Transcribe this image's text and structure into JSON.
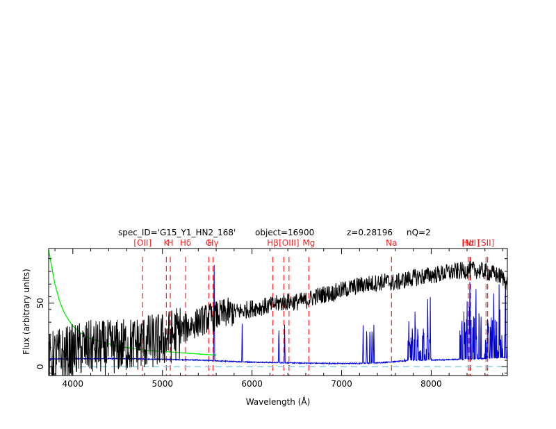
{
  "chart_data": {
    "type": "line",
    "header": {
      "spec_id": "spec_ID='G15_Y1_HN2_168'",
      "object": "object=16900",
      "redshift": "z=0.28196",
      "nq": "nQ=2"
    },
    "xlabel": "Wavelength (Å)",
    "ylabel": "Flux (arbitrary units)",
    "xlim": [
      3730,
      8850
    ],
    "ylim": [
      -7,
      93
    ],
    "x_ticks": [
      4000,
      5000,
      6000,
      7000,
      8000
    ],
    "y_ticks": [
      0,
      50
    ],
    "grid": false,
    "colors": {
      "spectrum": "#000000",
      "sky": "#0000dd",
      "response": "#00ee00",
      "zero_line": "#87ceeb",
      "lines": "#ff2020"
    },
    "line_markers": [
      {
        "label": "[OII]",
        "x": 4779
      },
      {
        "label": "K",
        "x": 5044
      },
      {
        "label": "H",
        "x": 5088
      },
      {
        "label": "Hδ",
        "x": 5259
      },
      {
        "label": "G",
        "x": 5518
      },
      {
        "label": "Hγ",
        "x": 5565
      },
      {
        "label": "Hβ",
        "x": 6232
      },
      {
        "label": "[OIII]",
        "x": 6413,
        "extra_x": [
          6355
        ]
      },
      {
        "label": "Mg",
        "x": 6634
      },
      {
        "label": "Na",
        "x": 7557
      },
      {
        "label": "Hα",
        "x": 8414,
        "extra_x": [
          8432
        ]
      },
      {
        "label": "[NII]",
        "x": 8440
      },
      {
        "label": "[SII]",
        "x": 8612,
        "extra_x": [
          8630
        ]
      }
    ],
    "series": [
      {
        "key": "spectrum",
        "x": [
          3730,
          3800,
          3900,
          4000,
          4100,
          4200,
          4300,
          4400,
          4500,
          4600,
          4700,
          4800,
          4900,
          5000,
          5100,
          5200,
          5300,
          5400,
          5500,
          5600,
          5700,
          5800,
          5900,
          6000,
          6100,
          6200,
          6300,
          6400,
          6500,
          6600,
          6700,
          6800,
          6900,
          7000,
          7100,
          7200,
          7300,
          7400,
          7500,
          7600,
          7700,
          7800,
          7900,
          8000,
          8100,
          8200,
          8300,
          8400,
          8500,
          8600,
          8700,
          8800,
          8850
        ],
        "y": [
          5,
          8,
          10,
          12,
          14,
          15,
          15,
          15,
          16,
          17,
          18,
          19,
          20,
          21,
          24,
          28,
          32,
          35,
          38,
          40,
          42,
          43,
          44,
          46,
          47,
          48,
          50,
          51,
          51,
          52,
          55,
          57,
          58,
          60,
          62,
          64,
          65,
          66,
          67,
          66,
          68,
          70,
          71,
          72,
          73,
          74,
          75,
          76,
          76,
          75,
          73,
          70,
          66
        ]
      },
      {
        "key": "sky",
        "x": [
          3730,
          4000,
          4500,
          5000,
          5400,
          5600,
          5800,
          6000,
          6200,
          6400,
          6600,
          6800,
          7000,
          7200,
          7400,
          7600,
          7800,
          8000,
          8200,
          8400,
          8600,
          8800,
          8850
        ],
        "y": [
          6,
          6.2,
          6.3,
          5.8,
          5.2,
          4.6,
          4,
          3.6,
          3.3,
          3,
          2.8,
          2.6,
          2.5,
          2.6,
          3,
          4,
          5,
          5.2,
          5.5,
          6,
          6.5,
          7,
          7
        ]
      },
      {
        "key": "response",
        "x": [
          3730,
          3760,
          3800,
          3850,
          3900,
          3950,
          4000,
          4100,
          4200,
          4300,
          4400,
          4500,
          4600,
          4700,
          4800,
          4900,
          5000,
          5100,
          5200,
          5300,
          5400,
          5500,
          5600
        ],
        "y": [
          92,
          80,
          65,
          52,
          43,
          37,
          32,
          26,
          22,
          20,
          18,
          16,
          15,
          14,
          13,
          12.5,
          12,
          11.5,
          11,
          10.5,
          10,
          9.5,
          9
        ]
      }
    ]
  }
}
